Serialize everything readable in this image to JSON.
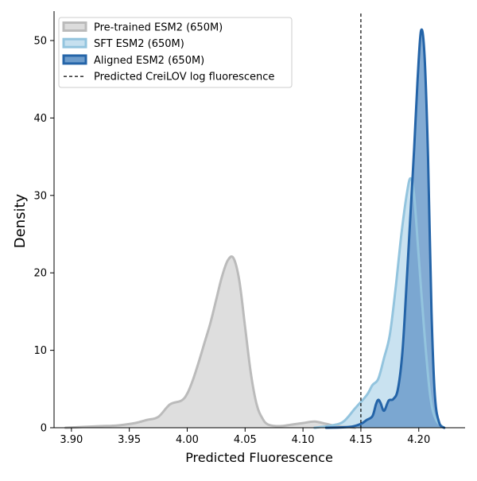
{
  "chart_data": {
    "type": "area",
    "title": "",
    "xlabel": "Predicted Fluorescence",
    "ylabel": "Density",
    "xlim": [
      3.885,
      4.24
    ],
    "ylim": [
      0,
      53.8
    ],
    "xticks": [
      3.9,
      3.95,
      4.0,
      4.05,
      4.1,
      4.15,
      4.2
    ],
    "xtick_labels": [
      "3.90",
      "3.95",
      "4.00",
      "4.05",
      "4.10",
      "4.15",
      "4.20"
    ],
    "yticks": [
      0,
      10,
      20,
      30,
      40,
      50
    ],
    "ytick_labels": [
      "0",
      "10",
      "20",
      "30",
      "40",
      "50"
    ],
    "grid": false,
    "legend_position": "top-left",
    "reference_line": {
      "x": 4.15,
      "style": "dashed",
      "color": "#000000",
      "label": "Predicted CreiLOV log fluorescence"
    },
    "series": [
      {
        "name": "Pre-trained ESM2 (650M)",
        "line_color": "#bbbbbb",
        "fill_color": "#dcdcdc",
        "x": [
          3.895,
          3.91,
          3.925,
          3.94,
          3.955,
          3.965,
          3.975,
          3.985,
          3.995,
          4.0,
          4.005,
          4.01,
          4.015,
          4.02,
          4.025,
          4.03,
          4.035,
          4.04,
          4.045,
          4.05,
          4.055,
          4.06,
          4.065,
          4.07,
          4.08,
          4.09,
          4.1,
          4.11,
          4.12,
          4.13,
          4.145
        ],
        "y": [
          0.0,
          0.1,
          0.2,
          0.3,
          0.6,
          1.0,
          1.4,
          3.0,
          3.5,
          4.4,
          6.2,
          8.5,
          11.0,
          13.5,
          16.5,
          19.5,
          21.6,
          21.9,
          19.0,
          13.0,
          7.0,
          3.0,
          1.2,
          0.4,
          0.2,
          0.4,
          0.6,
          0.8,
          0.5,
          0.2,
          0.0
        ]
      },
      {
        "name": "SFT ESM2 (650M)",
        "line_color": "#93c4de",
        "fill_color": "#c6e0ef",
        "x": [
          4.11,
          4.125,
          4.135,
          4.145,
          4.155,
          4.16,
          4.165,
          4.17,
          4.175,
          4.18,
          4.185,
          4.19,
          4.193,
          4.196,
          4.2,
          4.205,
          4.21,
          4.215,
          4.222
        ],
        "y": [
          0.0,
          0.3,
          0.8,
          2.5,
          4.2,
          5.5,
          6.3,
          9.0,
          12.0,
          18.0,
          25.0,
          30.5,
          32.2,
          30.0,
          22.0,
          12.0,
          4.0,
          1.0,
          0.0
        ]
      },
      {
        "name": "Aligned ESM2 (650M)",
        "line_color": "#2464a8",
        "fill_color": "#6d9ccb",
        "x": [
          4.12,
          4.14,
          4.15,
          4.155,
          4.16,
          4.163,
          4.165,
          4.167,
          4.17,
          4.174,
          4.178,
          4.182,
          4.186,
          4.19,
          4.193,
          4.196,
          4.199,
          4.202,
          4.205,
          4.208,
          4.211,
          4.214,
          4.218,
          4.222
        ],
        "y": [
          0.0,
          0.1,
          0.5,
          1.0,
          1.5,
          3.0,
          3.6,
          3.2,
          2.2,
          3.5,
          3.7,
          5.0,
          10.0,
          20.0,
          28.0,
          36.0,
          45.0,
          51.3,
          48.0,
          35.0,
          15.0,
          4.0,
          0.5,
          0.0
        ]
      }
    ]
  }
}
